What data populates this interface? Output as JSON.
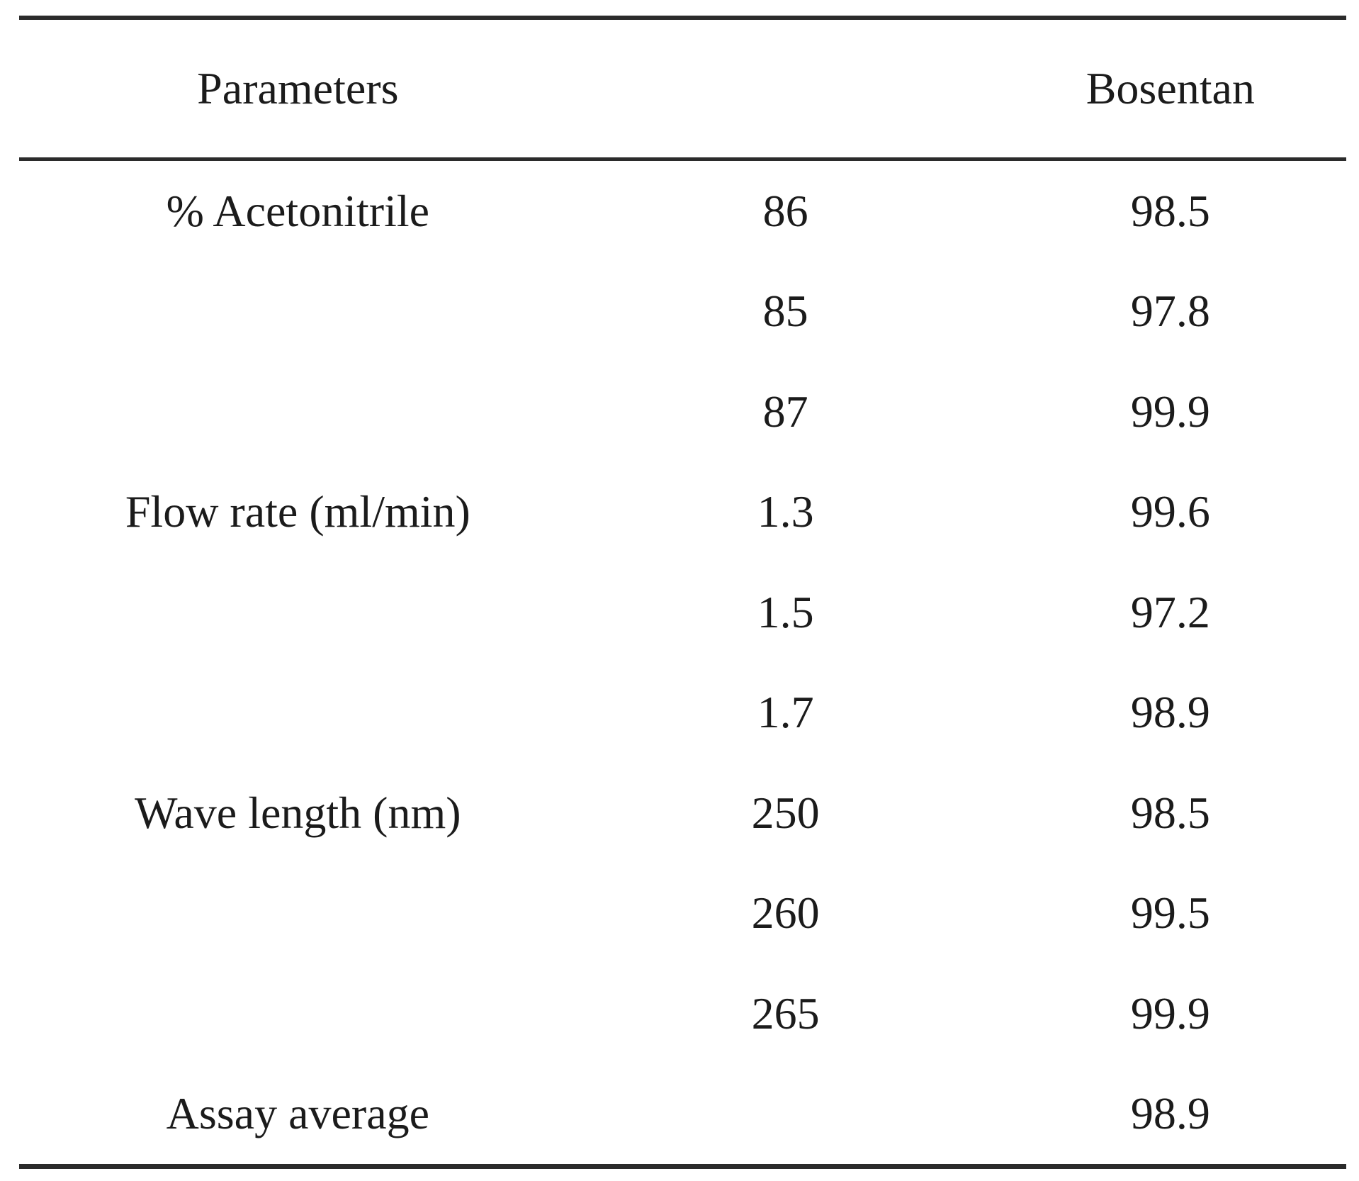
{
  "table": {
    "headers": {
      "parameters": "Parameters",
      "bosentan": "Bosentan"
    },
    "rows": [
      {
        "param": "% Acetonitrile",
        "value": "86",
        "result": "98.5"
      },
      {
        "param": "",
        "value": "85",
        "result": "97.8"
      },
      {
        "param": "",
        "value": "87",
        "result": "99.9"
      },
      {
        "param": "Flow rate (ml/min)",
        "value": "1.3",
        "result": "99.6"
      },
      {
        "param": "",
        "value": "1.5",
        "result": "97.2"
      },
      {
        "param": "",
        "value": "1.7",
        "result": "98.9"
      },
      {
        "param": "Wave length (nm)",
        "value": "250",
        "result": "98.5"
      },
      {
        "param": "",
        "value": "260",
        "result": "99.5"
      },
      {
        "param": "",
        "value": "265",
        "result": "99.9"
      },
      {
        "param": "Assay average",
        "value": "",
        "result": "98.9"
      }
    ],
    "colors": {
      "text": "#1b1b1b",
      "rule": "#2b2b2b",
      "background": "#ffffff"
    }
  }
}
